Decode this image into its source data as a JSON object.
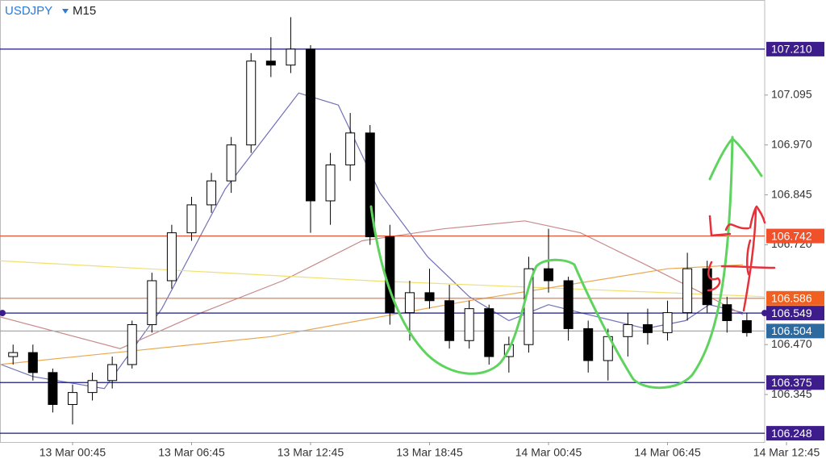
{
  "chart_data": {
    "type": "candlestick",
    "title": "USDJPY",
    "timeframe": "M15",
    "up_color": "#ffffff",
    "down_color": "#000000",
    "xlim": [
      -3.66,
      34.9
    ],
    "ylim": [
      106.226,
      107.333
    ],
    "yticks": [
      107.095,
      {
        "value": 106.97,
        "label": "106.970"
      },
      106.845,
      {
        "value": 106.72,
        "label": "106.720"
      },
      {
        "value": 106.47,
        "label": "106.470"
      },
      106.345
    ],
    "xticks": [
      {
        "value": 0,
        "label": "13 Mar 00:45"
      },
      {
        "value": 6,
        "label": "13 Mar 06:45"
      },
      {
        "value": 12,
        "label": "13 Mar 12:45"
      },
      {
        "value": 18,
        "label": "13 Mar 18:45"
      },
      {
        "value": 24,
        "label": "14 Mar 00:45"
      },
      {
        "value": 30,
        "label": "14 Mar 06:45"
      },
      {
        "value": 36,
        "label": "14 Mar 12:45"
      }
    ],
    "x": [
      -3,
      -2,
      -1,
      0,
      1,
      2,
      3,
      4,
      5,
      6,
      7,
      8,
      9,
      10,
      11,
      12,
      13,
      14,
      15,
      16,
      17,
      18,
      19,
      20,
      21,
      22,
      23,
      24,
      25,
      26,
      27,
      28,
      29,
      30,
      31,
      32,
      33,
      34
    ],
    "open": [
      106.44,
      106.45,
      106.4,
      106.32,
      106.35,
      106.38,
      106.42,
      106.52,
      106.63,
      106.75,
      106.82,
      106.88,
      106.97,
      107.18,
      107.17,
      107.21,
      106.83,
      106.92,
      107.0,
      106.74,
      106.55,
      106.6,
      106.58,
      106.48,
      106.56,
      106.44,
      106.47,
      106.66,
      106.63,
      106.51,
      106.43,
      106.49,
      106.52,
      106.5,
      106.55,
      106.66,
      106.57,
      106.53
    ],
    "high": [
      106.47,
      106.47,
      106.41,
      106.37,
      106.4,
      106.44,
      106.53,
      106.65,
      106.77,
      106.84,
      106.9,
      106.99,
      107.2,
      107.24,
      107.29,
      107.22,
      106.95,
      107.05,
      107.02,
      106.77,
      106.63,
      106.66,
      106.62,
      106.58,
      106.57,
      106.49,
      106.69,
      106.76,
      106.64,
      106.53,
      106.51,
      106.55,
      106.56,
      106.58,
      106.7,
      106.68,
      106.59,
      106.55
    ],
    "low": [
      106.42,
      106.38,
      106.3,
      106.27,
      106.33,
      106.36,
      106.41,
      106.5,
      106.61,
      106.73,
      106.8,
      106.85,
      106.95,
      107.14,
      107.15,
      106.75,
      106.77,
      106.88,
      106.72,
      106.52,
      106.48,
      106.56,
      106.46,
      106.46,
      106.42,
      106.4,
      106.45,
      106.6,
      106.48,
      106.4,
      106.38,
      106.44,
      106.47,
      106.48,
      106.53,
      106.55,
      106.5,
      106.49
    ],
    "close": [
      106.45,
      106.4,
      106.32,
      106.35,
      106.38,
      106.42,
      106.52,
      106.63,
      106.75,
      106.82,
      106.88,
      106.97,
      107.18,
      107.17,
      107.21,
      106.83,
      106.92,
      107.0,
      106.74,
      106.55,
      106.6,
      106.58,
      106.48,
      106.56,
      106.44,
      106.47,
      106.66,
      106.63,
      106.51,
      106.43,
      106.49,
      106.52,
      106.5,
      106.55,
      106.66,
      106.57,
      106.53,
      106.5
    ],
    "moving_averages": [
      {
        "color": "#7070b8",
        "x": [
          -3.6,
          -2,
          1.6,
          4.5,
          7.7,
          11.4,
          13.4,
          15.5,
          17.9,
          20,
          22,
          24,
          25.6,
          28.9,
          30.9,
          32.1,
          33.8
        ],
        "values": [
          106.42,
          106.39,
          106.36,
          106.56,
          106.86,
          107.1,
          107.07,
          106.85,
          106.69,
          106.59,
          106.53,
          106.57,
          106.55,
          106.51,
          106.53,
          106.57,
          106.55
        ]
      },
      {
        "color": "#c88a8a",
        "x": [
          -3.7,
          2.4,
          6.5,
          10.6,
          14.6,
          18.7,
          22.8,
          25.6,
          28.9,
          32.1,
          33.8
        ],
        "values": [
          106.54,
          106.46,
          106.55,
          106.63,
          106.73,
          106.76,
          106.78,
          106.75,
          106.67,
          106.59,
          106.545
        ]
      },
      {
        "color": "#f0e070",
        "x": [
          -3.7,
          15,
          34.9
        ],
        "values": [
          106.68,
          106.63,
          106.59
        ]
      },
      {
        "color": "#e8a850",
        "x": [
          -3.7,
          10,
          20,
          30,
          33.8
        ],
        "values": [
          106.42,
          106.49,
          106.58,
          106.66,
          106.67
        ]
      }
    ],
    "levels": [
      {
        "value": 107.21,
        "label": "107.210",
        "color": "#1a1a80",
        "label_bg": "#3d1c8c"
      },
      {
        "value": 106.742,
        "color": "#e05030",
        "label_bg": "#f0502a"
      },
      {
        "value": 106.586,
        "color": "#e07040",
        "label_bg": "#f06020"
      },
      {
        "value": 106.549,
        "color": "#1a1a80",
        "label_bg": "#3d1c8c"
      },
      {
        "value": 106.504,
        "color": "#aaaaaa",
        "label_bg": "#2d6aa0"
      },
      {
        "value": 106.375,
        "color": "#1a1a80",
        "label_bg": "#3d1c8c"
      },
      {
        "value": 106.248,
        "color": "#1a1a80",
        "label_bg": "#3d1c8c"
      }
    ]
  }
}
